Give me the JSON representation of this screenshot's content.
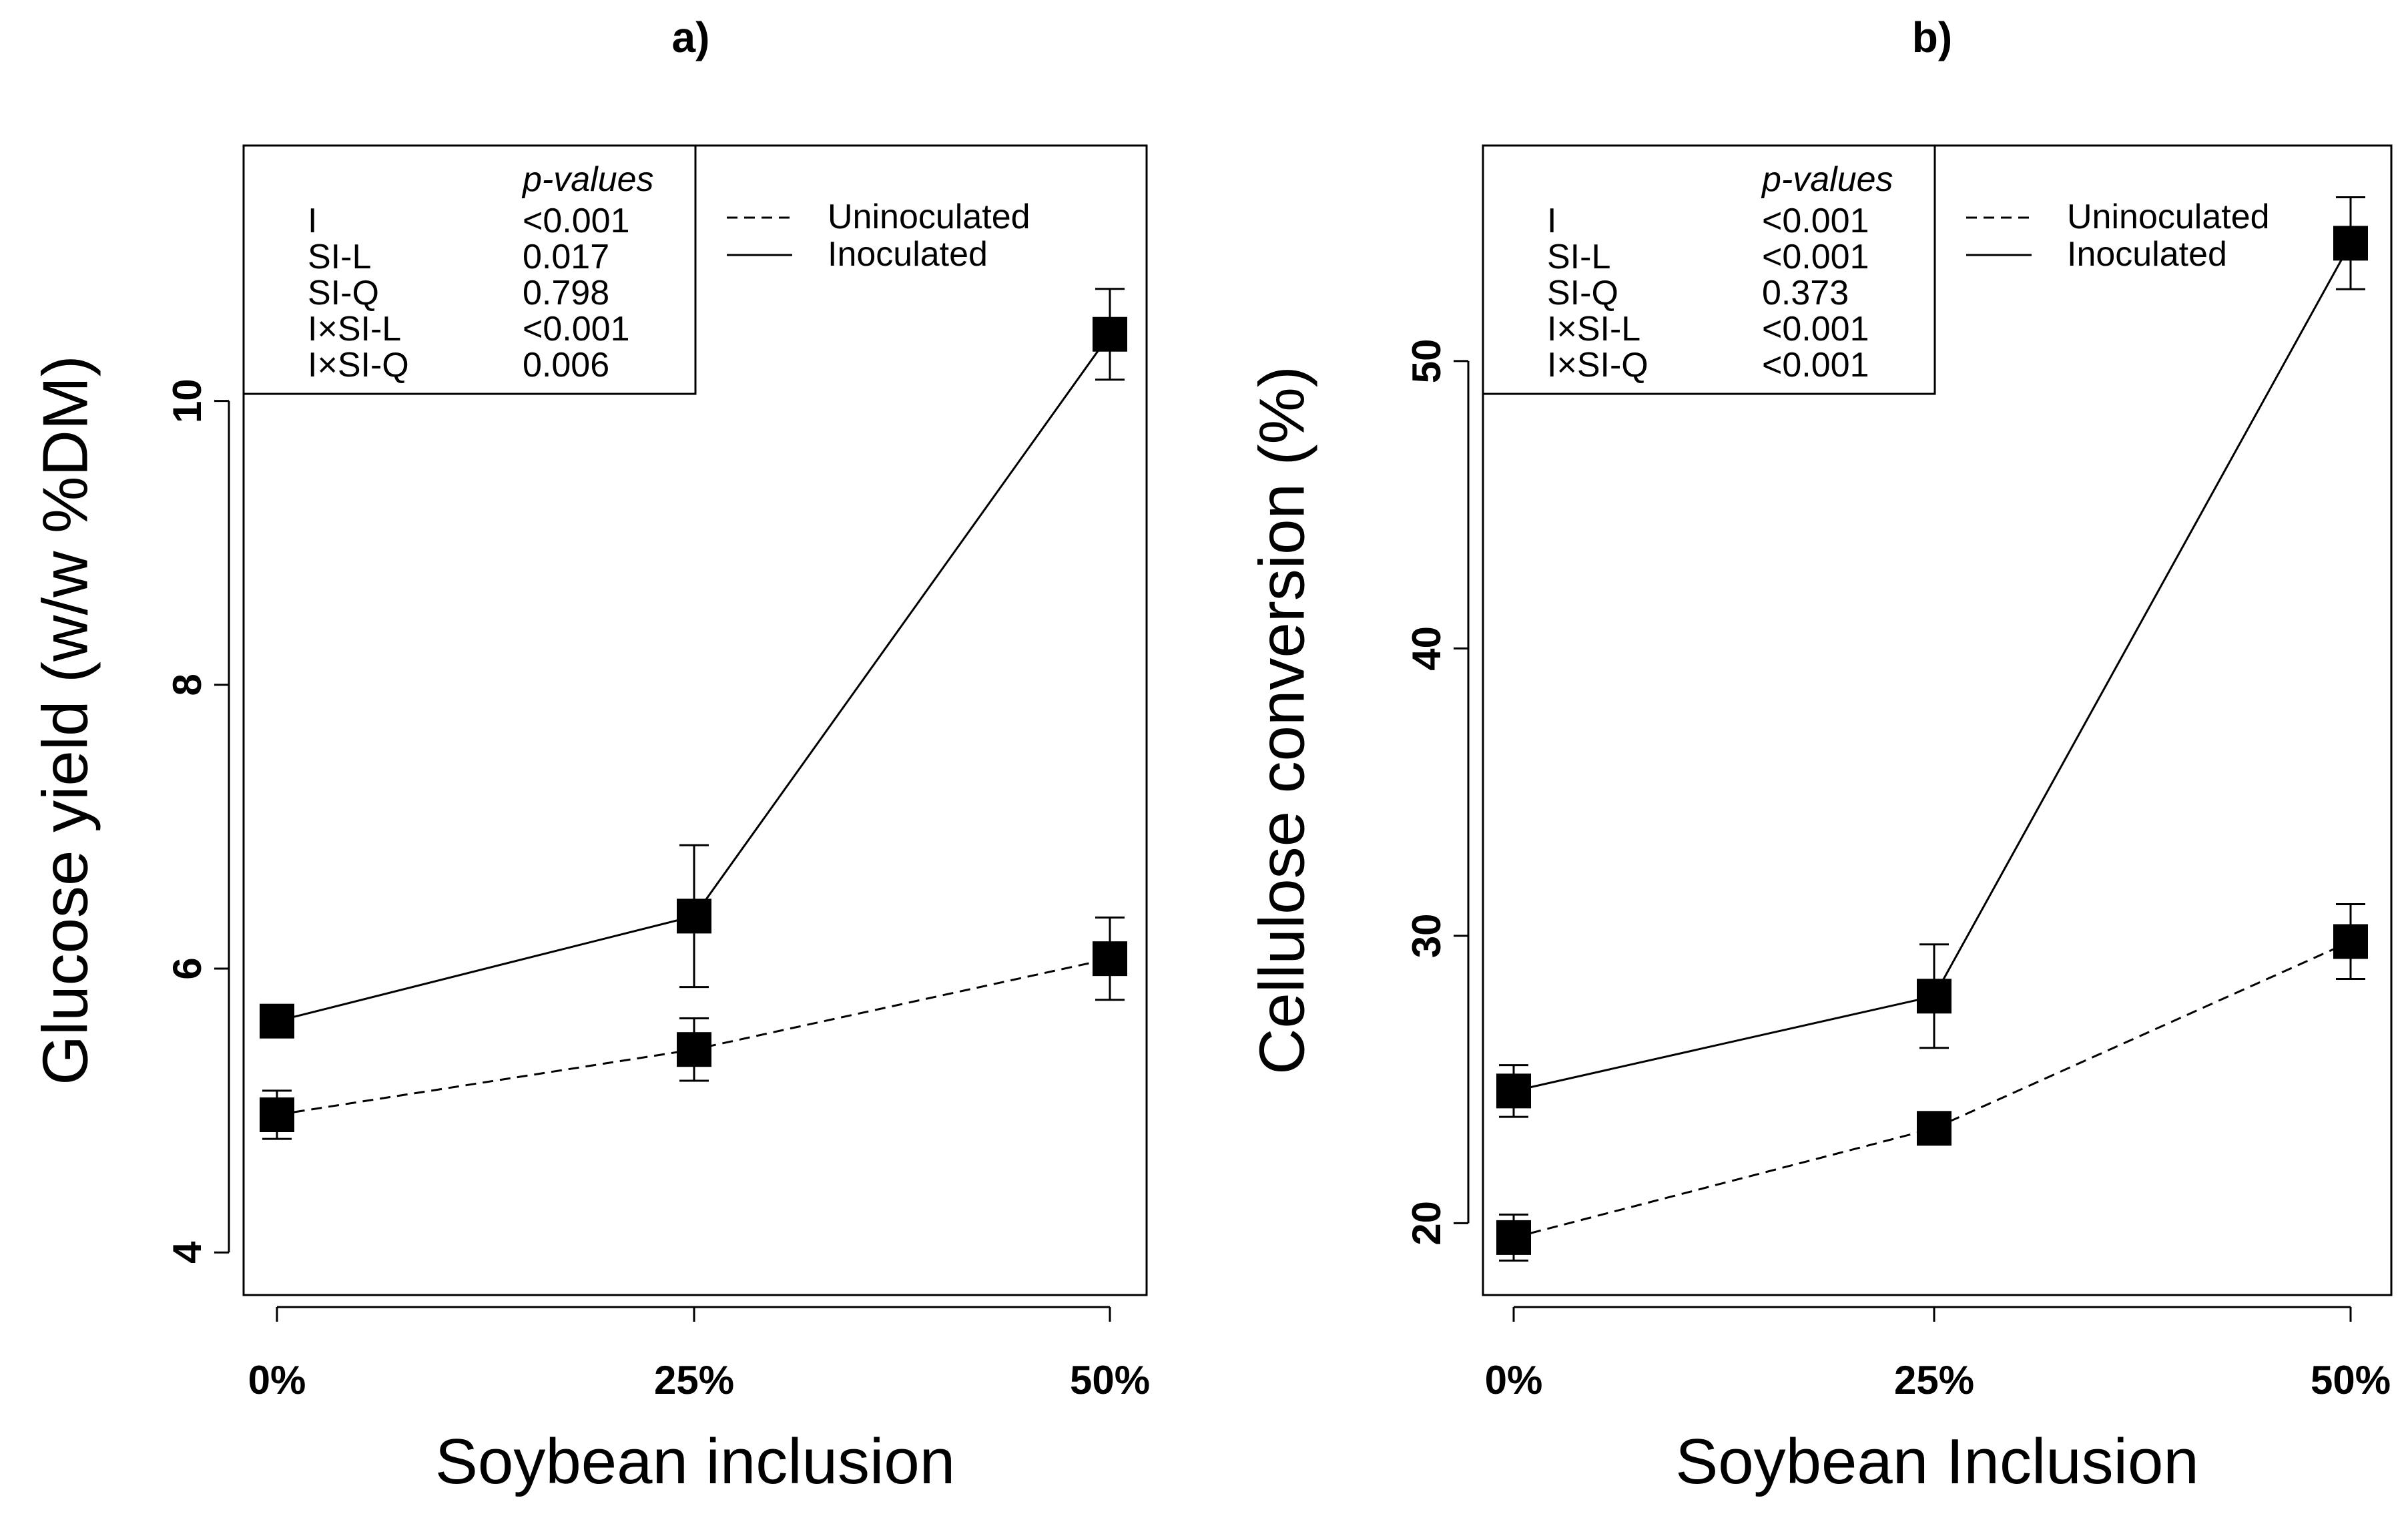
{
  "chart_data": [
    {
      "type": "line",
      "panel_label": "a)",
      "xlabel": "Soybean inclusion",
      "ylabel": "Glucose yield (w/w %DM)",
      "categories": [
        "0%",
        "25%",
        "50%"
      ],
      "yticks": [
        "4",
        "6",
        "8",
        "10"
      ],
      "ylim": [
        3.7,
        11.8
      ],
      "series": [
        {
          "name": "Inoculated",
          "line_style": "solid",
          "values": [
            5.63,
            6.37,
            10.47
          ],
          "err": [
            0.0,
            0.5,
            0.32
          ]
        },
        {
          "name": "Uninoculated",
          "line_style": "dashed",
          "values": [
            4.97,
            5.43,
            6.07
          ],
          "err": [
            0.17,
            0.22,
            0.29
          ]
        }
      ],
      "pvalue_table": {
        "header": "p-values",
        "rows": [
          {
            "term": "I",
            "p": "<0.001"
          },
          {
            "term": "SI-L",
            "p": "0.017"
          },
          {
            "term": "SI-Q",
            "p": "0.798"
          },
          {
            "term": "I×SI-L",
            "p": "<0.001"
          },
          {
            "term": "I×SI-Q",
            "p": "0.006"
          }
        ]
      },
      "legend": [
        "Uninoculated",
        "Inoculated"
      ]
    },
    {
      "type": "line",
      "panel_label": "b)",
      "xlabel": "Soybean Inclusion",
      "ylabel": "Cellulose conversion (%)",
      "categories": [
        "0%",
        "25%",
        "50%"
      ],
      "yticks": [
        "20",
        "30",
        "40",
        "50"
      ],
      "ylim": [
        17.5,
        57.5
      ],
      "series": [
        {
          "name": "Inoculated",
          "line_style": "solid",
          "values": [
            24.6,
            27.9,
            54.1
          ],
          "err": [
            0.9,
            1.8,
            1.6
          ]
        },
        {
          "name": "Uninoculated",
          "line_style": "dashed",
          "values": [
            19.5,
            23.3,
            29.8
          ],
          "err": [
            0.8,
            0.0,
            1.3
          ]
        }
      ],
      "pvalue_table": {
        "header": "p-values",
        "rows": [
          {
            "term": "I",
            "p": "<0.001"
          },
          {
            "term": "SI-L",
            "p": "<0.001"
          },
          {
            "term": "SI-Q",
            "p": "0.373"
          },
          {
            "term": "I×SI-L",
            "p": "<0.001"
          },
          {
            "term": "I×SI-Q",
            "p": "<0.001"
          }
        ]
      },
      "legend": [
        "Uninoculated",
        "Inoculated"
      ]
    }
  ]
}
